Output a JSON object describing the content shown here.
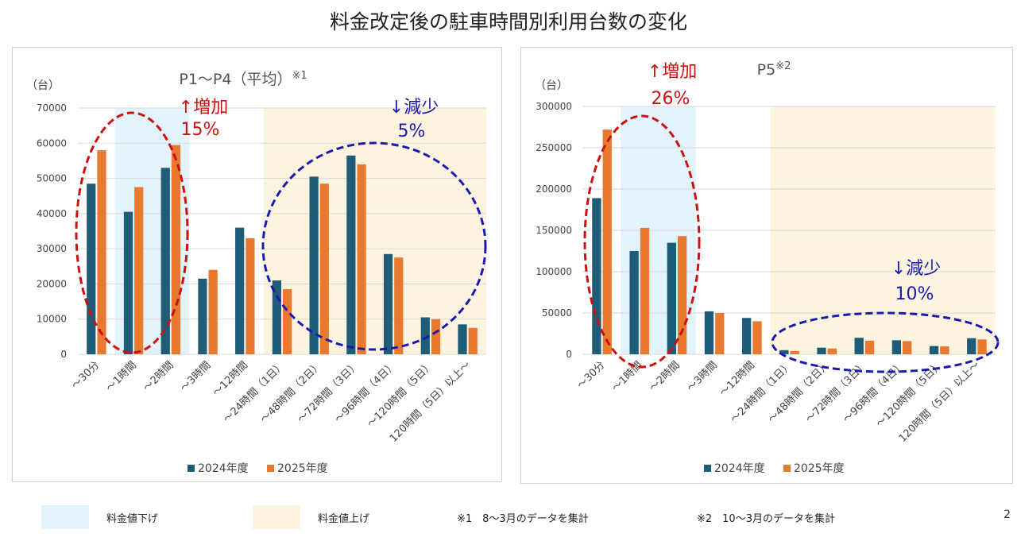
{
  "title": "料金改定後の駐車時間別利用台数の変化",
  "page_number": "2",
  "bottom_legend": {
    "price_down_label": "料金値下げ",
    "price_down_color": "#e2f3fb",
    "price_up_label": "料金値上げ",
    "price_up_color": "#fdf4e0",
    "note1": "※1　8～3月のデータを集計",
    "note2": "※2　10～3月のデータを集計"
  },
  "colors": {
    "series_2024": "#1f5c78",
    "series_2025": "#e8792f",
    "increase": "#cc1111",
    "decrease": "#1a1ab0",
    "gridline": "#d9d9d9"
  },
  "chart_data": [
    {
      "type": "bar",
      "title": "P1～P4（平均）",
      "title_note": "※1",
      "ylabel": "（台）",
      "ylim": [
        0,
        70000
      ],
      "yticks": [
        0,
        10000,
        20000,
        30000,
        40000,
        50000,
        60000,
        70000
      ],
      "categories": [
        "～30分",
        "～1時間",
        "～2時間",
        "～3時間",
        "～12時間",
        "～24時間（1日）",
        "～48時間（2日）",
        "～72時間（3日）",
        "～96時間（4日）",
        "～120時間（5日）",
        "120時間（5日）以上～"
      ],
      "series": [
        {
          "name": "2024年度",
          "values": [
            48500,
            40500,
            53000,
            21500,
            36000,
            21000,
            50500,
            56500,
            28500,
            10500,
            8500
          ]
        },
        {
          "name": "2025年度",
          "values": [
            58000,
            47500,
            59500,
            24000,
            33000,
            18500,
            48500,
            54000,
            27500,
            10000,
            7500
          ]
        }
      ],
      "price_down_range": [
        1,
        2
      ],
      "price_up_range": [
        5,
        10
      ],
      "annotations": [
        {
          "arrow": "↑",
          "label": "増加",
          "percent": "15%",
          "kind": "increase"
        },
        {
          "arrow": "↓",
          "label": "減少",
          "percent": "5%",
          "kind": "decrease"
        }
      ]
    },
    {
      "type": "bar",
      "title": "P5",
      "title_note": "※2",
      "ylabel": "（台）",
      "ylim": [
        0,
        300000
      ],
      "yticks": [
        0,
        50000,
        100000,
        150000,
        200000,
        250000,
        300000
      ],
      "categories": [
        "～30分",
        "～1時間",
        "～2時間",
        "～3時間",
        "～12時間",
        "～24時間（1日）",
        "～48時間（2日）",
        "～72時間（3日）",
        "～96時間（4日）",
        "～120時間（5日）",
        "120時間（5日）以上～"
      ],
      "series": [
        {
          "name": "2024年度",
          "values": [
            189000,
            125000,
            135000,
            52000,
            44000,
            5000,
            8000,
            20000,
            17000,
            10000,
            19500
          ]
        },
        {
          "name": "2025年度",
          "values": [
            272000,
            153000,
            143000,
            50000,
            40000,
            4000,
            7000,
            16500,
            16000,
            9500,
            18000
          ]
        }
      ],
      "price_down_range": [
        1,
        2
      ],
      "price_up_range": [
        5,
        10
      ],
      "annotations": [
        {
          "arrow": "↑",
          "label": "増加",
          "percent": "26%",
          "kind": "increase"
        },
        {
          "arrow": "↓",
          "label": "減少",
          "percent": "10%",
          "kind": "decrease"
        }
      ]
    }
  ]
}
